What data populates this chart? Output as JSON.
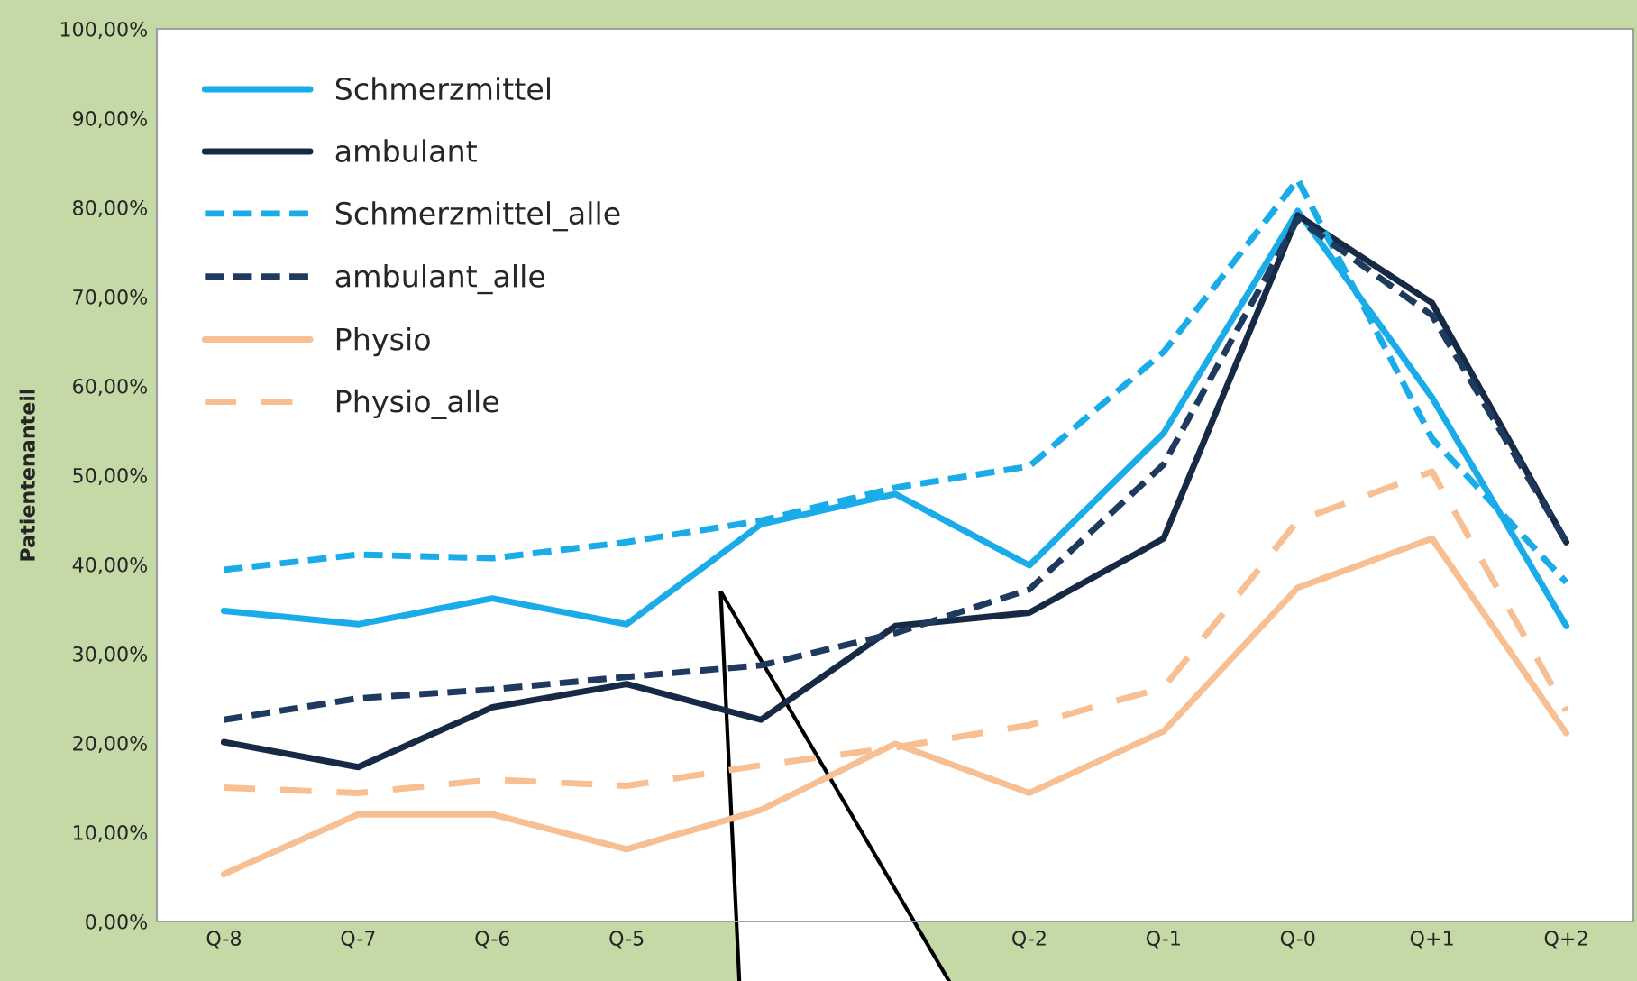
{
  "chart_data": {
    "type": "line",
    "ylabel": "Patientenanteil",
    "categories": [
      "Q-8",
      "Q-7",
      "Q-6",
      "Q-5",
      null,
      null,
      "Q-2",
      "Q-1",
      "Q-0",
      "Q+1",
      "Q+2"
    ],
    "series": [
      {
        "name": "Schmerzmittel",
        "color": "#1aacE8",
        "line_style": "solid",
        "values": [
          34.8,
          33.3,
          36.2,
          33.3,
          44.5,
          47.9,
          39.9,
          54.7,
          79.6,
          58.7,
          33.1
        ]
      },
      {
        "name": "ambulant",
        "color": "#172a45",
        "line_style": "solid",
        "values": [
          20.1,
          17.3,
          24.0,
          26.6,
          22.6,
          33.1,
          34.6,
          42.9,
          79.1,
          69.3,
          42.5
        ]
      },
      {
        "name": "Schmerzmittel_alle",
        "color": "#1aace8",
        "line_style": "dashed",
        "values": [
          39.4,
          41.1,
          40.7,
          42.5,
          44.9,
          48.6,
          51.0,
          63.8,
          83.1,
          54.1,
          38.0
        ]
      },
      {
        "name": "ambulant_alle",
        "color": "#1f3a5f",
        "line_style": "dashed",
        "values": [
          22.6,
          25.0,
          26.0,
          27.4,
          28.7,
          32.3,
          37.2,
          51.2,
          78.7,
          67.9,
          42.5
        ]
      },
      {
        "name": "Physio",
        "color": "#f7bf92",
        "line_style": "solid",
        "values": [
          5.3,
          12.0,
          12.0,
          8.1,
          12.5,
          19.9,
          14.4,
          21.3,
          37.4,
          42.9,
          21.1
        ]
      },
      {
        "name": "Physio_alle",
        "color": "#f7bf92",
        "line_style": "dashed",
        "values": [
          15.0,
          14.4,
          15.9,
          15.2,
          17.5,
          19.5,
          22.0,
          26.2,
          44.9,
          50.4,
          23.6
        ]
      }
    ],
    "ylim": [
      0,
      100
    ],
    "yticks": [
      {
        "value": 0,
        "label": "0,00%"
      },
      {
        "value": 10,
        "label": "10,00%"
      },
      {
        "value": 20,
        "label": "20,00%"
      },
      {
        "value": 30,
        "label": "30,00%"
      },
      {
        "value": 40,
        "label": "40,00%"
      },
      {
        "value": 50,
        "label": "50,00%"
      },
      {
        "value": 60,
        "label": "60,00%"
      },
      {
        "value": 70,
        "label": "70,00%"
      },
      {
        "value": 80,
        "label": "80,00%"
      },
      {
        "value": 90,
        "label": "90,00%"
      },
      {
        "value": 100,
        "label": "100,00%"
      }
    ],
    "grid": false,
    "legend": "top left",
    "marker": "none"
  }
}
